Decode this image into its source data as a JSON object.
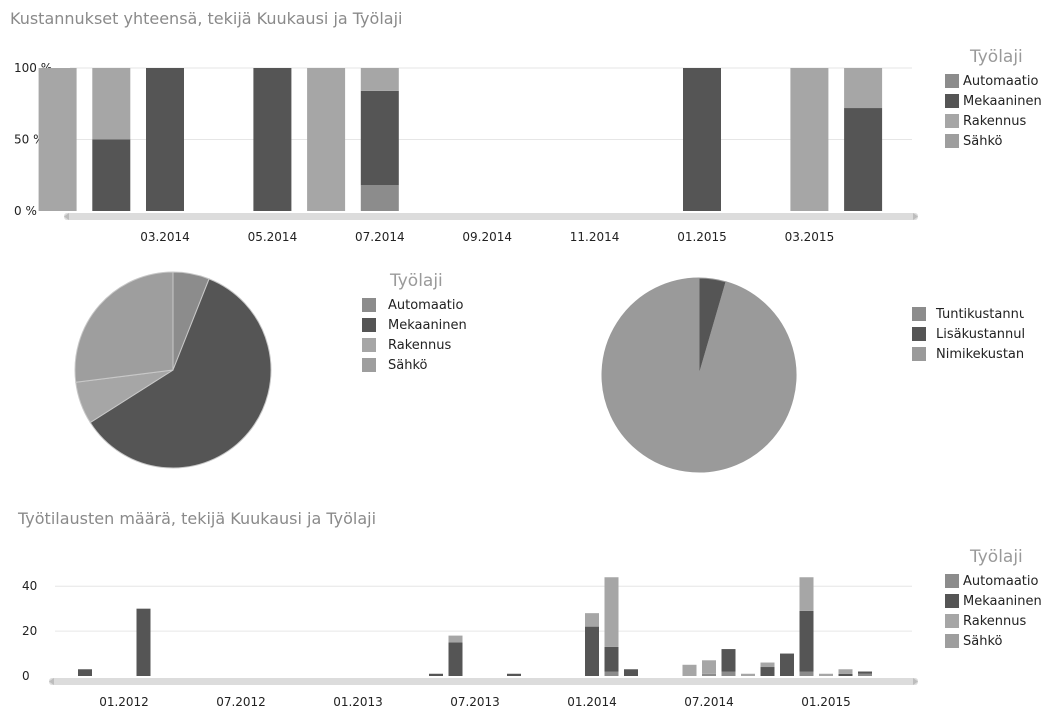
{
  "chart_data": [
    {
      "type": "bar",
      "stacked": true,
      "percent": true,
      "title": "Kustannukset yhteensä, tekijä Kuukausi ja Työlaji",
      "y_ticks": [
        "0 %",
        "50 %",
        "100 %"
      ],
      "ylim": [
        0,
        100
      ],
      "x_ticks": [
        "03.2014",
        "05.2014",
        "07.2014",
        "09.2014",
        "11.2014",
        "01.2015",
        "03.2015"
      ],
      "legend_title": "Työlaji",
      "legend_position": "right",
      "series_order": [
        "Automaatio",
        "Mekaaninen",
        "Rakennus",
        "Sähkö"
      ],
      "colors": [
        "#8c8c8c",
        "#555555",
        "#a6a6a6",
        "#9e9e9e"
      ],
      "bars": [
        {
          "x": "01.2014",
          "values": [
            0,
            0,
            100,
            0
          ]
        },
        {
          "x": "02.2014",
          "values": [
            0,
            50,
            50,
            0
          ]
        },
        {
          "x": "03.2014",
          "values": [
            0,
            100,
            0,
            0
          ]
        },
        {
          "x": "05.2014",
          "values": [
            0,
            100,
            0,
            0
          ]
        },
        {
          "x": "06.2014",
          "values": [
            0,
            0,
            100,
            0
          ]
        },
        {
          "x": "07.2014",
          "values": [
            18,
            66,
            16,
            0
          ]
        },
        {
          "x": "01.2015",
          "values": [
            0,
            100,
            0,
            0
          ]
        },
        {
          "x": "03.2015",
          "values": [
            0,
            0,
            100,
            0
          ]
        },
        {
          "x": "04.2015",
          "values": [
            0,
            72,
            28,
            0
          ]
        }
      ]
    },
    {
      "type": "pie",
      "legend_title": "Työlaji",
      "labels": [
        "Automaatio",
        "Mekaaninen",
        "Rakennus",
        "Sähkö"
      ],
      "values": [
        6,
        60,
        7,
        27
      ],
      "colors": [
        "#8c8c8c",
        "#555555",
        "#a6a6a6",
        "#9e9e9e"
      ]
    },
    {
      "type": "pie",
      "labels": [
        "Tuntikustannukset",
        "Lisäkustannukset",
        "Nimikekustannukset"
      ],
      "values": [
        0,
        4.5,
        95.5
      ],
      "colors": [
        "#8c8c8c",
        "#555555",
        "#9a9a9a"
      ]
    },
    {
      "type": "bar",
      "stacked": true,
      "title": "Työtilausten määrä, tekijä Kuukausi ja Työlaji",
      "y_ticks": [
        "0",
        "20",
        "40"
      ],
      "ylim": [
        0,
        45
      ],
      "x_ticks": [
        "01.2012",
        "07.2012",
        "01.2013",
        "07.2013",
        "01.2014",
        "07.2014",
        "01.2015"
      ],
      "legend_title": "Työlaji",
      "legend_position": "right",
      "series_order": [
        "Automaatio",
        "Mekaaninen",
        "Rakennus",
        "Sähkö"
      ],
      "colors": [
        "#8c8c8c",
        "#555555",
        "#a6a6a6",
        "#9e9e9e"
      ],
      "bars": [
        {
          "x": "11.2011",
          "values": [
            0,
            3,
            0,
            0
          ]
        },
        {
          "x": "02.2012",
          "values": [
            0,
            30,
            0,
            0
          ]
        },
        {
          "x": "05.2013",
          "values": [
            0,
            1,
            0,
            0
          ]
        },
        {
          "x": "06.2013",
          "values": [
            0,
            15,
            3,
            0
          ]
        },
        {
          "x": "09.2013",
          "values": [
            0,
            1,
            0,
            0
          ]
        },
        {
          "x": "01.2014",
          "values": [
            0,
            22,
            6,
            0
          ]
        },
        {
          "x": "02.2014",
          "values": [
            2,
            11,
            31,
            0
          ]
        },
        {
          "x": "03.2014",
          "values": [
            0,
            3,
            0,
            0
          ]
        },
        {
          "x": "06.2014",
          "values": [
            0,
            0,
            5,
            0
          ]
        },
        {
          "x": "07.2014",
          "values": [
            1,
            0,
            6,
            0
          ]
        },
        {
          "x": "08.2014",
          "values": [
            2,
            10,
            0,
            0
          ]
        },
        {
          "x": "09.2014",
          "values": [
            0,
            0,
            1,
            0
          ]
        },
        {
          "x": "10.2014",
          "values": [
            0,
            4,
            2,
            0
          ]
        },
        {
          "x": "11.2014",
          "values": [
            0,
            10,
            0,
            0
          ]
        },
        {
          "x": "12.2014",
          "values": [
            2,
            27,
            15,
            0
          ]
        },
        {
          "x": "01.2015",
          "values": [
            0,
            0,
            1,
            0
          ]
        },
        {
          "x": "02.2015",
          "values": [
            0,
            1,
            2,
            0
          ]
        },
        {
          "x": "03.2015",
          "values": [
            1,
            1,
            0,
            0
          ]
        }
      ]
    }
  ],
  "legends": {
    "top": {
      "title": "Työlaji",
      "items": [
        "Automaatio",
        "Mekaaninen",
        "Rakennus",
        "Sähkö"
      ]
    },
    "pie1": {
      "title": "Työlaji",
      "items": [
        "Automaatio",
        "Mekaaninen",
        "Rakennus",
        "Sähkö"
      ]
    },
    "pie2": {
      "items": [
        "Tuntikustannukset",
        "Lisäkustannukset",
        "Nimikekustannukset"
      ]
    },
    "bottom": {
      "title": "Työlaji",
      "items": [
        "Automaatio",
        "Mekaaninen",
        "Rakennus",
        "Sähkö"
      ]
    }
  }
}
